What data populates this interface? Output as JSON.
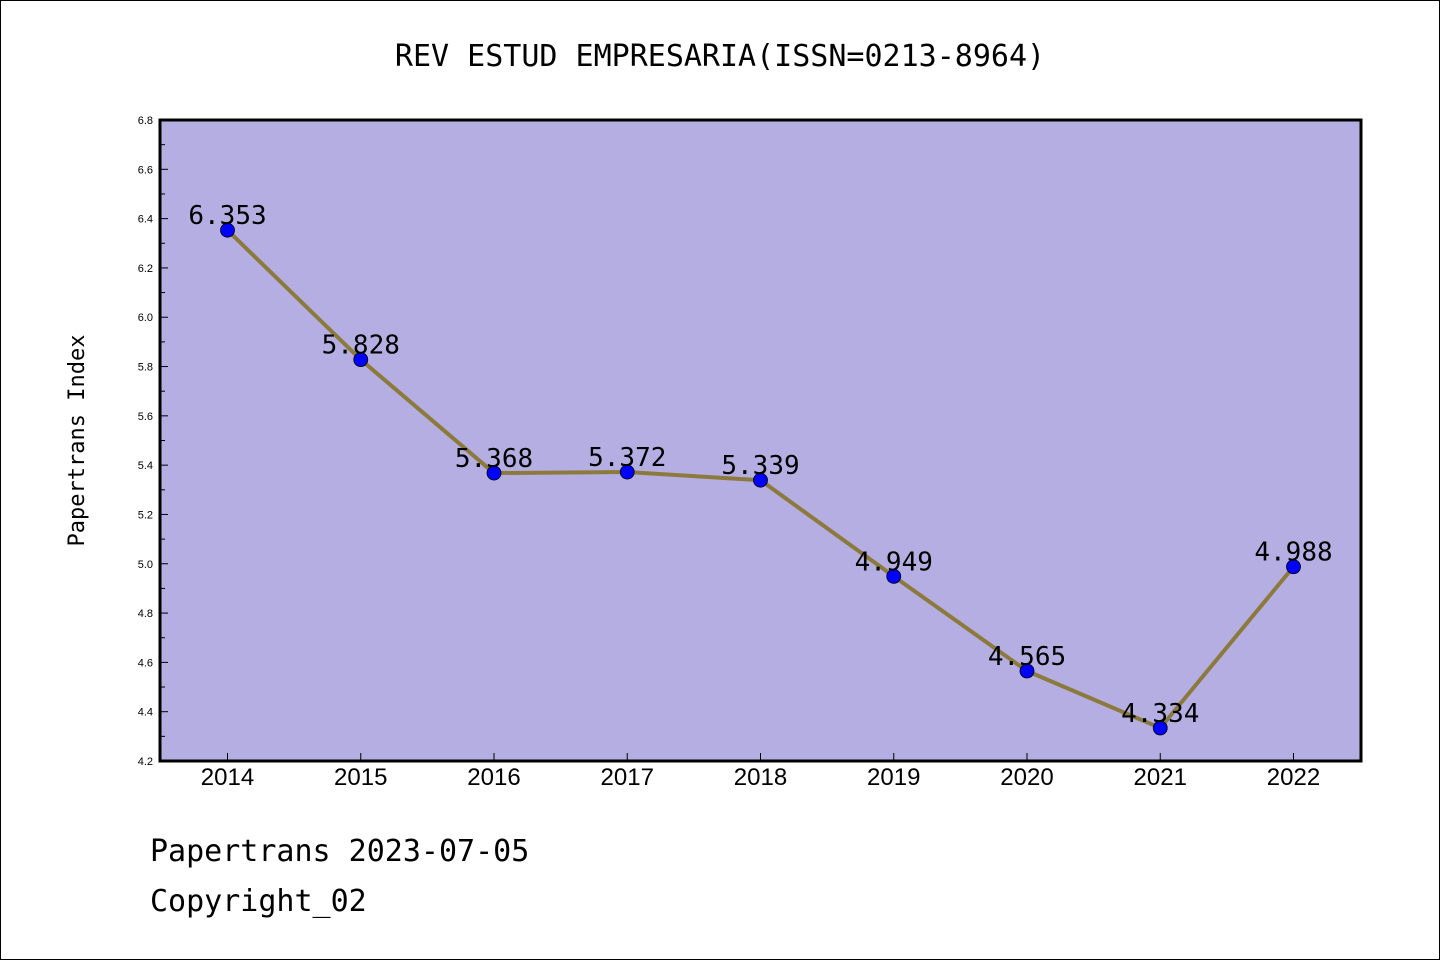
{
  "chart_data": {
    "type": "line",
    "title": "REV ESTUD EMPRESARIA(ISSN=0213-8964)",
    "xlabel": "",
    "ylabel": "Papertrans Index",
    "categories": [
      "2014",
      "2015",
      "2016",
      "2017",
      "2018",
      "2019",
      "2020",
      "2021",
      "2022"
    ],
    "series": [
      {
        "values": [
          6.353,
          5.828,
          5.368,
          5.372,
          5.339,
          4.949,
          4.565,
          4.334,
          4.988
        ],
        "labels": [
          "6.353",
          "5.828",
          "5.368",
          "5.372",
          "5.339",
          "4.949",
          "4.565",
          "4.334",
          "4.988"
        ]
      }
    ],
    "ylim": [
      4.2,
      6.8
    ],
    "yticks": [
      "4.2",
      "4.4",
      "4.6",
      "4.8",
      "5.0",
      "5.2",
      "5.4",
      "5.6",
      "5.8",
      "6.0",
      "6.2",
      "6.4",
      "6.6",
      "6.8"
    ],
    "grid": false,
    "colors": {
      "plot_background": "#b5aee2",
      "line": "#8c7a3c",
      "marker": "#0000ff"
    }
  },
  "footer": {
    "source": "Papertrans 2023-07-05",
    "copyright": "Copyright_02"
  }
}
